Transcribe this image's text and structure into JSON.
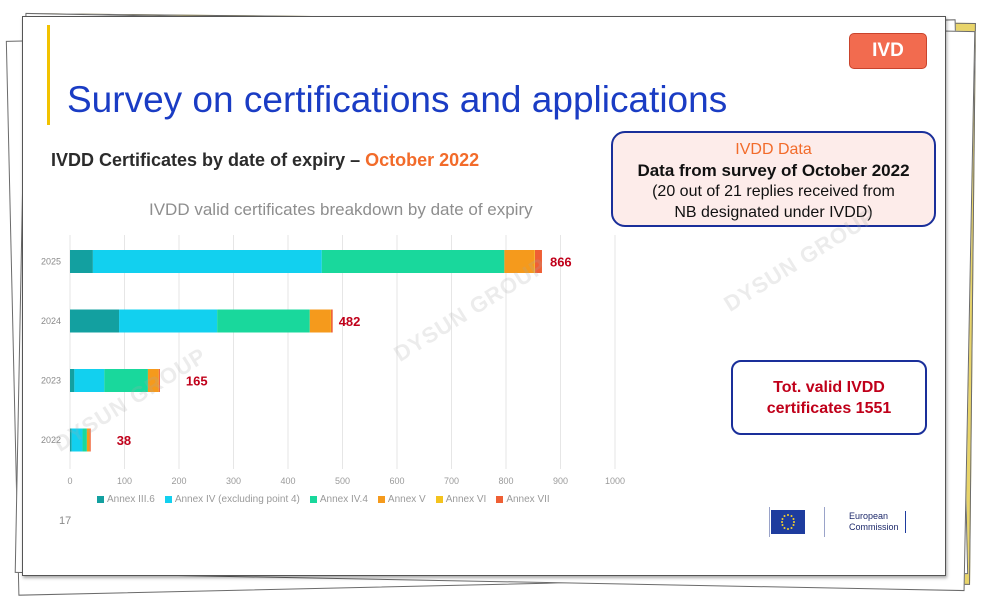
{
  "badge": "IVD",
  "title": "Survey on certifications and applications",
  "subtitle": {
    "main": "IVDD Certificates by date of expiry –",
    "accent": "October 2022"
  },
  "page_number": "17",
  "info_box": {
    "title": "IVDD Data",
    "line1": "Data from survey of October 2022",
    "line2": "(20 out of 21 replies received from",
    "line3": "NB designated under IVDD)"
  },
  "total_box": {
    "line1": "Tot. valid IVDD",
    "line2": "certificates 1551"
  },
  "logo": {
    "line1": "European",
    "line2": "Commission"
  },
  "watermark": "DYSUN GROUP",
  "chart_data": {
    "type": "bar",
    "orientation": "horizontal",
    "stacked": true,
    "title": "IVDD valid certificates breakdown by date of expiry",
    "categories": [
      "2025",
      "2024",
      "2023",
      "2022"
    ],
    "series": [
      {
        "name": "Annex III.6",
        "color": "#13a0a0",
        "values": [
          42,
          90,
          8,
          3
        ]
      },
      {
        "name": "Annex IV (excluding point 4)",
        "color": "#12d0ef",
        "values": [
          420,
          180,
          55,
          20
        ]
      },
      {
        "name": "Annex IV.4",
        "color": "#19d89c",
        "values": [
          335,
          170,
          80,
          8
        ]
      },
      {
        "name": "Annex V",
        "color": "#f59a1c",
        "values": [
          55,
          38,
          20,
          5
        ]
      },
      {
        "name": "Annex VI",
        "color": "#f4c31d",
        "values": [
          1,
          1,
          0,
          0
        ]
      },
      {
        "name": "Annex VII",
        "color": "#ef5f34",
        "values": [
          13,
          3,
          2,
          2
        ]
      }
    ],
    "totals": [
      "866",
      "482",
      "165",
      "38"
    ],
    "xlim": [
      0,
      1000
    ],
    "xticks": [
      "0",
      "100",
      "200",
      "300",
      "400",
      "500",
      "600",
      "700",
      "800",
      "900",
      "1000"
    ],
    "grid": true,
    "legend": "bottom",
    "total_label_color": "#c0001a"
  }
}
